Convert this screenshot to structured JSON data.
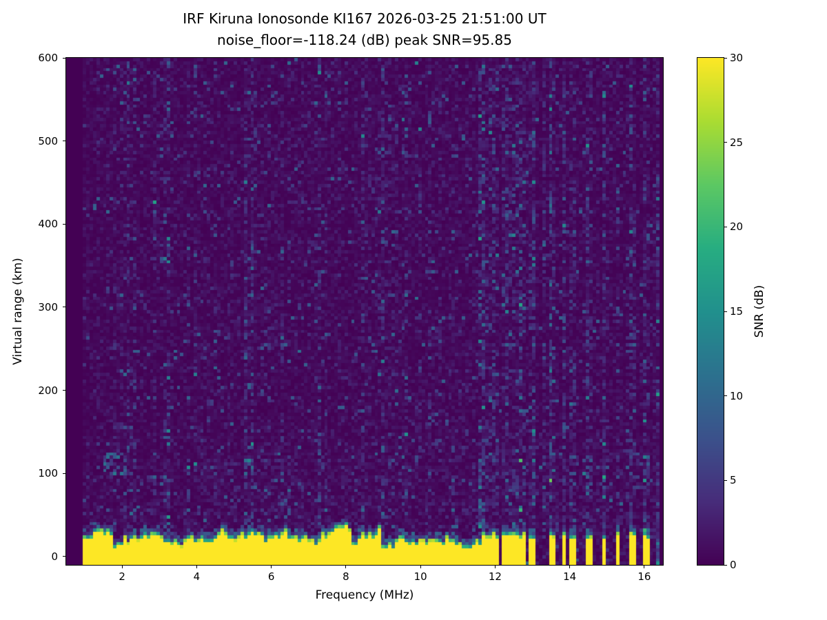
{
  "chart_data": {
    "type": "heatmap",
    "title": "IRF Kiruna Ionosonde KI167 2026-03-25 21:51:00  UT",
    "subtitle": "noise_floor=-118.24 (dB) peak SNR=95.85",
    "xlabel": "Frequency (MHz)",
    "ylabel": "Virtual range (km)",
    "xlim": [
      0.5,
      16.5
    ],
    "ylim": [
      -10,
      600
    ],
    "xticks": [
      2,
      4,
      6,
      8,
      10,
      12,
      14,
      16
    ],
    "yticks": [
      0,
      100,
      200,
      300,
      400,
      500,
      600
    ],
    "grid": false,
    "colorbar": {
      "label": "SNR (dB)",
      "min": 0,
      "max": 30,
      "ticks": [
        0,
        5,
        10,
        15,
        20,
        25,
        30
      ],
      "colormap": "viridis"
    },
    "heatmap": {
      "description": "Ionogram: saturated ground/direct echo band (SNR ~30 dB, yellow) from -10 km up to a ragged top edge of ~15-45 km across 0.93-11.62 MHz; above 11.62 MHz the echo band breaks into discrete narrow vertical bars at quasi-regular frequencies; rest of plot is low-level noise (~0-3 dB) with sparse teal speckles, faint full-height interference stripes (denser above 11.6 MHz), and a weak E-region echo cluster near 1.5-2.1 MHz at 100-125 km.",
      "freq_bin_mhz": 0.09,
      "range_bin_km": 4,
      "data_freq_range_mhz": [
        0.93,
        16.45
      ],
      "background_noise_mean_db": 0.9,
      "speckle": {
        "probability": 0.02,
        "extra_db": [
          3,
          9
        ]
      },
      "low_range_speckle_boost_below_km": 140,
      "ground_echo": {
        "freq_range_mhz": [
          0.93,
          11.62
        ],
        "snr_db": 30,
        "top_edge_km_mean": 29,
        "top_edge_km_range": [
          14,
          45
        ]
      },
      "e_region_echo": {
        "freq_range_mhz": [
          1.5,
          2.1
        ],
        "range_km": [
          100,
          125
        ],
        "snr_db": [
          4,
          12
        ],
        "density": 0.3
      },
      "echo_bars_mhz": [
        11.66,
        11.75,
        11.88,
        11.99,
        12.1,
        12.23,
        12.34,
        12.47,
        12.58,
        12.71,
        12.82,
        12.93,
        13.04,
        13.5,
        13.6,
        13.86,
        14.08,
        14.17,
        14.5,
        14.6,
        14.93,
        15.3,
        15.63,
        15.72,
        16.04,
        16.13
      ],
      "noise_stripes_mhz": [
        11.66,
        11.99,
        12.34,
        12.71,
        13.04,
        13.36,
        13.5,
        13.86,
        14.17,
        14.5,
        14.93,
        15.3,
        15.63,
        16.04,
        16.35
      ],
      "faint_stripes_mhz": [
        2.2,
        2.33,
        2.9,
        3.2,
        4.0,
        5.3,
        5.45,
        6.3,
        6.5,
        7.3,
        7.45,
        8.5,
        9.0,
        9.6,
        10.3
      ]
    }
  }
}
